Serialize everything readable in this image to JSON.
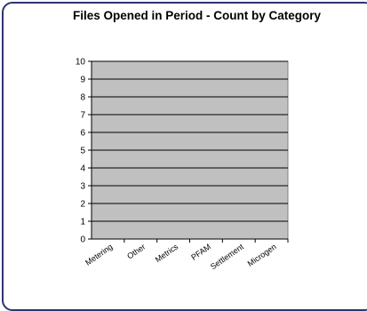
{
  "chart_data": {
    "type": "bar",
    "title": "Files Opened in Period - Count by Category",
    "xlabel": "",
    "ylabel": "",
    "categories": [
      "Metering",
      "Other",
      "Metrics",
      "PFAM",
      "Settlement",
      "Microgen"
    ],
    "values": [
      0,
      0,
      0,
      0,
      0,
      0
    ],
    "yticks": [
      "0",
      "1",
      "2",
      "3",
      "4",
      "5",
      "6",
      "7",
      "8",
      "9",
      "10"
    ],
    "ylim": [
      0,
      10
    ],
    "grid": true,
    "legend": "none",
    "plot_background": "#c0c0c0",
    "bar_color": "#9999ff"
  }
}
